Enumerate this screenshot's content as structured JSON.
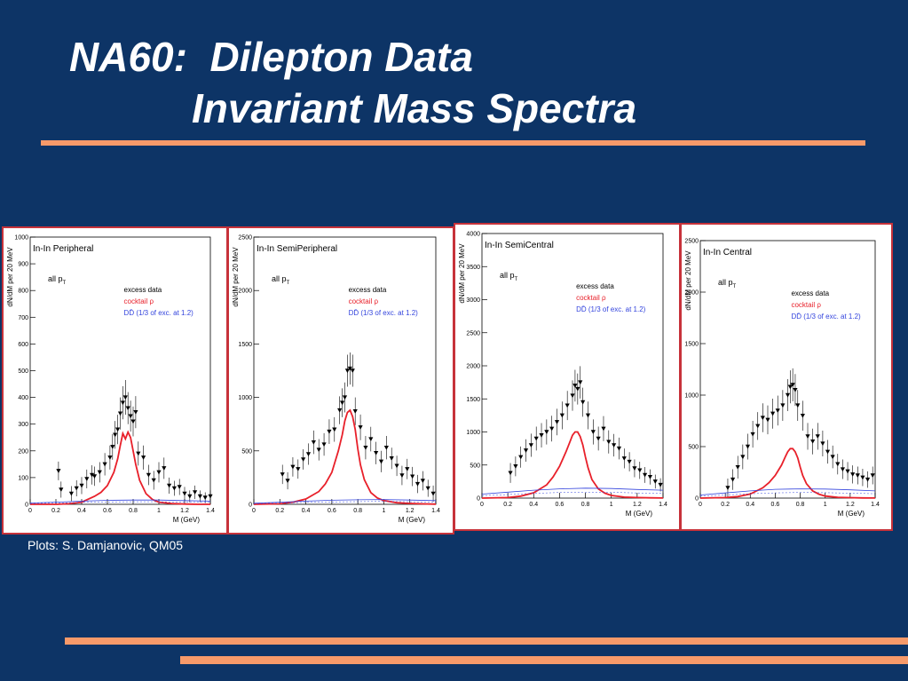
{
  "slide": {
    "title_line1": "NA60:  Dilepton Data",
    "title_line2": "Invariant Mass Spectra",
    "credit": "Plots: S. Damjanovic, QM05",
    "colors": {
      "background": "#0d3466",
      "rule": "#f79a6a",
      "panel_border": "#c7323a",
      "cocktail": "#e8202a",
      "dd": "#3344dd",
      "data": "#000000"
    }
  },
  "chart_data": [
    {
      "type": "scatter",
      "title": "In-In Peripheral",
      "subtitle": "all p",
      "subtitle_sub": "T",
      "xlabel": "M (GeV)",
      "ylabel": "dN/dM per 20 MeV",
      "xlim": [
        0,
        1.4
      ],
      "ylim": [
        0,
        1000
      ],
      "xticks": [
        0,
        0.2,
        0.4,
        0.6,
        0.8,
        1,
        1.2,
        1.4
      ],
      "xticklabels": [
        "0",
        "0.2",
        "0.4",
        "0.6",
        "0.8",
        "1",
        "1.2",
        "1.4"
      ],
      "yticks": [
        0,
        100,
        200,
        300,
        400,
        500,
        600,
        700,
        800,
        900,
        1000
      ],
      "yticklabels": [
        "0",
        "100",
        "200",
        "300",
        "400",
        "500",
        "600",
        "700",
        "800",
        "900",
        "1000"
      ],
      "legend": [
        "excess data",
        "cocktail ρ",
        "DD̄ (1/3 of exc. at 1.2)"
      ],
      "legend_position": "top-right",
      "series": [
        {
          "name": "excess data",
          "kind": "points",
          "x": [
            0.22,
            0.24,
            0.32,
            0.36,
            0.4,
            0.44,
            0.48,
            0.5,
            0.54,
            0.58,
            0.62,
            0.64,
            0.66,
            0.68,
            0.7,
            0.72,
            0.74,
            0.76,
            0.78,
            0.8,
            0.82,
            0.84,
            0.88,
            0.92,
            0.96,
            1.0,
            1.04,
            1.08,
            1.12,
            1.16,
            1.2,
            1.24,
            1.28,
            1.32,
            1.36,
            1.4
          ],
          "y": [
            125,
            55,
            40,
            60,
            70,
            95,
            110,
            105,
            120,
            150,
            175,
            215,
            260,
            280,
            340,
            380,
            400,
            360,
            330,
            310,
            345,
            190,
            175,
            110,
            90,
            120,
            135,
            70,
            60,
            65,
            40,
            30,
            45,
            30,
            25,
            30
          ],
          "err": [
            35,
            30,
            28,
            30,
            32,
            35,
            36,
            36,
            38,
            42,
            45,
            48,
            52,
            55,
            60,
            62,
            65,
            60,
            58,
            56,
            60,
            45,
            45,
            38,
            35,
            38,
            40,
            30,
            28,
            30,
            25,
            22,
            25,
            22,
            20,
            22
          ]
        },
        {
          "name": "cocktail ρ",
          "kind": "line",
          "x": [
            0,
            0.2,
            0.3,
            0.4,
            0.5,
            0.55,
            0.6,
            0.65,
            0.68,
            0.7,
            0.72,
            0.74,
            0.76,
            0.78,
            0.8,
            0.82,
            0.85,
            0.9,
            0.95,
            1.0,
            1.1,
            1.2,
            1.3,
            1.4
          ],
          "y": [
            0,
            0,
            2,
            8,
            30,
            45,
            70,
            120,
            170,
            220,
            265,
            245,
            270,
            250,
            200,
            150,
            90,
            40,
            18,
            8,
            3,
            1,
            0,
            0
          ]
        },
        {
          "name": "DD̄ (1/3 of exc. at 1.2)",
          "kind": "line",
          "x": [
            0,
            0.2,
            0.4,
            0.6,
            0.8,
            1.0,
            1.2,
            1.4
          ],
          "y": [
            5,
            8,
            12,
            15,
            16,
            16,
            14,
            12
          ]
        }
      ]
    },
    {
      "type": "scatter",
      "title": "In-In SemiPeripheral",
      "subtitle": "all p",
      "subtitle_sub": "T",
      "xlabel": "M (GeV)",
      "ylabel": "dN/dM per 20 MeV",
      "xlim": [
        0,
        1.4
      ],
      "ylim": [
        0,
        2500
      ],
      "xticks": [
        0,
        0.2,
        0.4,
        0.6,
        0.8,
        1,
        1.2,
        1.4
      ],
      "xticklabels": [
        "0",
        "0.2",
        "0.4",
        "0.6",
        "0.8",
        "1",
        "1.2",
        "1.4"
      ],
      "yticks": [
        0,
        500,
        1000,
        1500,
        2000,
        2500
      ],
      "yticklabels": [
        "0",
        "500",
        "1000",
        "1500",
        "2000",
        "2500"
      ],
      "legend": [
        "excess data",
        "cocktail ρ",
        "DD̄ (1/3 of exc. at 1.2)"
      ],
      "legend_position": "top-right",
      "series": [
        {
          "name": "excess data",
          "kind": "points",
          "x": [
            0.22,
            0.26,
            0.3,
            0.34,
            0.38,
            0.42,
            0.46,
            0.5,
            0.54,
            0.58,
            0.62,
            0.66,
            0.68,
            0.7,
            0.72,
            0.74,
            0.76,
            0.78,
            0.82,
            0.86,
            0.9,
            0.94,
            0.98,
            1.02,
            1.06,
            1.1,
            1.14,
            1.18,
            1.22,
            1.26,
            1.3,
            1.34,
            1.38
          ],
          "y": [
            280,
            220,
            350,
            330,
            420,
            470,
            580,
            510,
            560,
            680,
            700,
            880,
            950,
            1000,
            1250,
            1270,
            1250,
            870,
            720,
            530,
            610,
            480,
            400,
            530,
            430,
            360,
            270,
            330,
            260,
            190,
            220,
            150,
            100
          ],
          "err": [
            90,
            80,
            90,
            90,
            95,
            100,
            110,
            100,
            105,
            115,
            115,
            130,
            135,
            140,
            150,
            150,
            150,
            130,
            120,
            110,
            115,
            105,
            100,
            110,
            100,
            95,
            90,
            95,
            90,
            85,
            90,
            80,
            75
          ]
        },
        {
          "name": "cocktail ρ",
          "kind": "line",
          "x": [
            0,
            0.2,
            0.3,
            0.4,
            0.5,
            0.55,
            0.6,
            0.65,
            0.68,
            0.7,
            0.72,
            0.74,
            0.76,
            0.78,
            0.8,
            0.82,
            0.85,
            0.9,
            0.95,
            1.0,
            1.1,
            1.2,
            1.3,
            1.4
          ],
          "y": [
            0,
            5,
            20,
            50,
            120,
            190,
            300,
            500,
            650,
            780,
            860,
            880,
            820,
            700,
            520,
            370,
            230,
            110,
            60,
            35,
            15,
            8,
            4,
            2
          ]
        },
        {
          "name": "DD̄ (1/3 of exc. at 1.2)",
          "kind": "line",
          "x": [
            0,
            0.2,
            0.4,
            0.6,
            0.8,
            1.0,
            1.2,
            1.4
          ],
          "y": [
            10,
            20,
            30,
            38,
            42,
            45,
            40,
            35
          ]
        }
      ]
    },
    {
      "type": "scatter",
      "title": "In-In SemiCentral",
      "subtitle": "all p",
      "subtitle_sub": "T",
      "xlabel": "M (GeV)",
      "ylabel": "dN/dM per 20 MeV",
      "xlim": [
        0,
        1.4
      ],
      "ylim": [
        0,
        4000
      ],
      "xticks": [
        0,
        0.2,
        0.4,
        0.6,
        0.8,
        1,
        1.2,
        1.4
      ],
      "xticklabels": [
        "0",
        "0.2",
        "0.4",
        "0.6",
        "0.8",
        "1",
        "1.2",
        "1.4"
      ],
      "yticks": [
        0,
        500,
        1000,
        1500,
        2000,
        2500,
        3000,
        3500,
        4000
      ],
      "yticklabels": [
        "0",
        "500",
        "1000",
        "1500",
        "2000",
        "2500",
        "3000",
        "3500",
        "4000"
      ],
      "legend": [
        "excess data",
        "cocktail ρ",
        "DD̄ (1/3 of exc. at 1.2)"
      ],
      "legend_position": "top-right",
      "series": [
        {
          "name": "excess data",
          "kind": "points",
          "x": [
            0.22,
            0.26,
            0.3,
            0.34,
            0.38,
            0.42,
            0.46,
            0.5,
            0.54,
            0.58,
            0.62,
            0.66,
            0.7,
            0.72,
            0.74,
            0.76,
            0.78,
            0.82,
            0.86,
            0.9,
            0.94,
            0.98,
            1.02,
            1.06,
            1.1,
            1.14,
            1.18,
            1.22,
            1.26,
            1.3,
            1.34,
            1.38
          ],
          "y": [
            380,
            480,
            620,
            720,
            800,
            900,
            950,
            1000,
            1050,
            1150,
            1250,
            1400,
            1550,
            1700,
            1650,
            1750,
            1450,
            1250,
            1000,
            900,
            1050,
            850,
            800,
            750,
            600,
            550,
            450,
            420,
            350,
            320,
            250,
            200
          ],
          "err": [
            150,
            150,
            160,
            170,
            175,
            180,
            185,
            190,
            195,
            200,
            210,
            220,
            230,
            240,
            235,
            245,
            220,
            210,
            190,
            180,
            190,
            175,
            170,
            165,
            150,
            145,
            135,
            130,
            120,
            115,
            105,
            100
          ]
        },
        {
          "name": "cocktail ρ",
          "kind": "line",
          "x": [
            0,
            0.2,
            0.3,
            0.4,
            0.5,
            0.55,
            0.6,
            0.65,
            0.68,
            0.7,
            0.72,
            0.74,
            0.76,
            0.78,
            0.8,
            0.82,
            0.85,
            0.9,
            0.95,
            1.0,
            1.1,
            1.2,
            1.3,
            1.4
          ],
          "y": [
            0,
            8,
            30,
            80,
            200,
            320,
            480,
            700,
            850,
            950,
            1000,
            1000,
            930,
            800,
            620,
            460,
            280,
            140,
            75,
            40,
            15,
            8,
            4,
            2
          ]
        },
        {
          "name": "DD̄ (1/3 of exc. at 1.2)",
          "kind": "line",
          "x": [
            0,
            0.2,
            0.4,
            0.6,
            0.8,
            1.0,
            1.2,
            1.4
          ],
          "y": [
            60,
            90,
            120,
            140,
            150,
            145,
            130,
            120
          ]
        }
      ]
    },
    {
      "type": "scatter",
      "title": "In-In Central",
      "subtitle": "all p",
      "subtitle_sub": "T",
      "xlabel": "M (GeV)",
      "ylabel": "dN/dM per 20 MeV",
      "xlim": [
        0,
        1.4
      ],
      "ylim": [
        0,
        2500
      ],
      "xticks": [
        0,
        0.2,
        0.4,
        0.6,
        0.8,
        1,
        1.2,
        1.4
      ],
      "xticklabels": [
        "0",
        "0.2",
        "0.4",
        "0.6",
        "0.8",
        "1",
        "1.2",
        "1.4"
      ],
      "yticks": [
        0,
        500,
        1000,
        1500,
        2000,
        2500
      ],
      "yticklabels": [
        "0",
        "500",
        "1000",
        "1500",
        "2000",
        "2500"
      ],
      "legend": [
        "excess data",
        "cocktail ρ",
        "DD̄ (1/3 of exc. at 1.2)"
      ],
      "legend_position": "top-right",
      "series": [
        {
          "name": "excess data",
          "kind": "points",
          "x": [
            0.22,
            0.26,
            0.3,
            0.34,
            0.38,
            0.42,
            0.46,
            0.5,
            0.54,
            0.58,
            0.62,
            0.66,
            0.7,
            0.72,
            0.74,
            0.76,
            0.78,
            0.82,
            0.86,
            0.9,
            0.94,
            0.98,
            1.02,
            1.06,
            1.1,
            1.14,
            1.18,
            1.22,
            1.26,
            1.3,
            1.34,
            1.38
          ],
          "y": [
            100,
            180,
            300,
            400,
            500,
            620,
            700,
            780,
            760,
            820,
            850,
            900,
            1000,
            1080,
            1100,
            1050,
            900,
            800,
            600,
            550,
            600,
            530,
            450,
            400,
            330,
            280,
            260,
            230,
            220,
            200,
            180,
            220
          ],
          "err": [
            90,
            100,
            110,
            120,
            125,
            130,
            135,
            140,
            140,
            145,
            145,
            150,
            155,
            160,
            160,
            155,
            150,
            145,
            130,
            125,
            130,
            125,
            115,
            110,
            100,
            95,
            90,
            88,
            86,
            84,
            80,
            86
          ]
        },
        {
          "name": "cocktail ρ",
          "kind": "line",
          "x": [
            0,
            0.2,
            0.3,
            0.4,
            0.5,
            0.55,
            0.6,
            0.65,
            0.68,
            0.7,
            0.72,
            0.74,
            0.76,
            0.78,
            0.8,
            0.82,
            0.85,
            0.9,
            0.95,
            1.0,
            1.1,
            1.2,
            1.3,
            1.4
          ],
          "y": [
            0,
            5,
            15,
            40,
            100,
            150,
            220,
            320,
            400,
            450,
            480,
            480,
            450,
            390,
            300,
            220,
            140,
            70,
            38,
            20,
            8,
            4,
            2,
            1
          ]
        },
        {
          "name": "DD̄ (1/3 of exc. at 1.2)",
          "kind": "line",
          "x": [
            0,
            0.2,
            0.4,
            0.6,
            0.8,
            1.0,
            1.2,
            1.4
          ],
          "y": [
            30,
            50,
            70,
            85,
            90,
            88,
            80,
            70
          ]
        }
      ]
    }
  ]
}
